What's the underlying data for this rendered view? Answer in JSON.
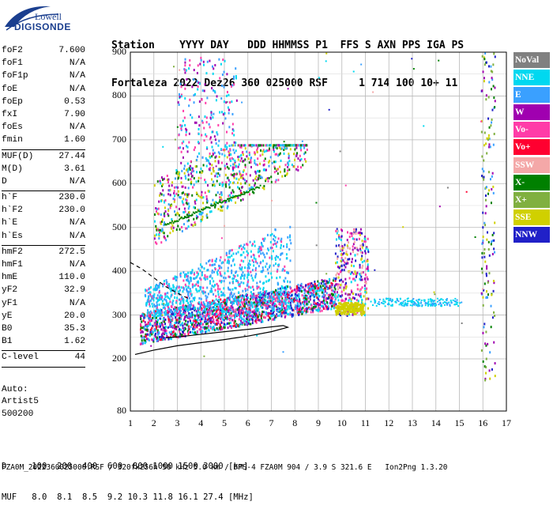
{
  "logo": {
    "line1": "Lowell",
    "line2": "DIGISONDE"
  },
  "header": {
    "line1": "Station    YYYY DAY   DDD HHMMSS P1  FFS S AXN PPS IGA PS",
    "line2": "Fortaleza 2022 Dez26 360 025000 RSF     1 714 100 10+ 11"
  },
  "params": {
    "group1": [
      {
        "label": "foF2",
        "value": "7.600"
      },
      {
        "label": "foF1",
        "value": "N/A"
      },
      {
        "label": "foF1p",
        "value": "N/A"
      },
      {
        "label": "foE",
        "value": "N/A"
      },
      {
        "label": "foEp",
        "value": "0.53"
      },
      {
        "label": "fxI",
        "value": "7.90"
      },
      {
        "label": "foEs",
        "value": "N/A"
      },
      {
        "label": "fmin",
        "value": "1.60"
      }
    ],
    "group2": [
      {
        "label": "MUF(D)",
        "value": "27.44"
      },
      {
        "label": "M(D)",
        "value": "3.61"
      },
      {
        "label": "D",
        "value": "N/A"
      }
    ],
    "group3": [
      {
        "label": "h`F",
        "value": "230.0"
      },
      {
        "label": "h`F2",
        "value": "230.0"
      },
      {
        "label": "h`E",
        "value": "N/A"
      },
      {
        "label": "h`Es",
        "value": "N/A"
      }
    ],
    "group4": [
      {
        "label": "hmF2",
        "value": "272.5"
      },
      {
        "label": "hmF1",
        "value": "N/A"
      },
      {
        "label": "hmE",
        "value": "110.0"
      },
      {
        "label": "yF2",
        "value": "32.9"
      },
      {
        "label": "yF1",
        "value": "N/A"
      },
      {
        "label": "yE",
        "value": "20.0"
      },
      {
        "label": "B0",
        "value": "35.3"
      },
      {
        "label": "B1",
        "value": "1.62"
      }
    ],
    "group5": [
      {
        "label": "C-level",
        "value": "44"
      }
    ]
  },
  "auto": {
    "line1": "Auto:",
    "line2": "Artist5",
    "line3": "500200"
  },
  "axes": {
    "y_ticks": [
      "900",
      "800",
      "700",
      "600",
      "500",
      "400",
      "300",
      "200",
      "80"
    ],
    "x_ticks": [
      "1",
      "2",
      "3",
      "4",
      "5",
      "6",
      "7",
      "8",
      "9",
      "10",
      "11",
      "12",
      "13",
      "14",
      "15",
      "16",
      "17"
    ]
  },
  "legend": [
    {
      "label": "NoVal",
      "color": "#808080"
    },
    {
      "label": "NNE",
      "color": "#00d8f0"
    },
    {
      "label": "E",
      "color": "#3aa0ff"
    },
    {
      "label": "W",
      "color": "#a000b0"
    },
    {
      "label": "Vo-",
      "color": "#ff3ca8"
    },
    {
      "label": "Vo+",
      "color": "#ff0030"
    },
    {
      "label": "SSW",
      "color": "#f4a8a8"
    },
    {
      "label": "X-",
      "color": "#008000"
    },
    {
      "label": "X+",
      "color": "#80b040"
    },
    {
      "label": "SSE",
      "color": "#d0d000"
    },
    {
      "label": "NNW",
      "color": "#2020c8"
    }
  ],
  "bottom": {
    "line1": "D     100  200  400  600  800 1000 1500 3000 [km]",
    "line2": "MUF   8.0  8.1  8.5  9.2 10.3 11.8 16.1 27.4 [MHz]"
  },
  "footer": "FZA0M_2022360025000.RSF / 320fx256h 50 kHz 5.0 km / DPS-4 FZA0M 904 / 3.9 S 321.6 E   Ion2Png 1.3.20"
}
